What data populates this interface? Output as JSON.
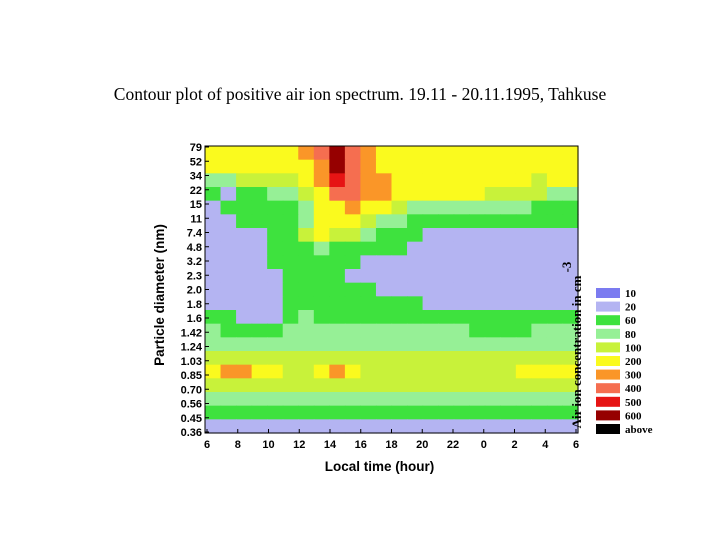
{
  "chart_data": {
    "type": "heatmap",
    "title": "Contour plot of positive air ion spectrum. 19.11 - 20.11.1995, Tahkuse",
    "xlabel": "Local time (hour)",
    "ylabel": "Particle diameter (nm)",
    "colorbar_label": "Air ion concentration in cm",
    "colorbar_exponent": "-3",
    "x_ticks": [
      "6",
      "8",
      "10",
      "12",
      "14",
      "16",
      "18",
      "20",
      "22",
      "0",
      "2",
      "4",
      "6"
    ],
    "y_ticks": [
      "79",
      "52",
      "34",
      "22",
      "15",
      "11",
      "7.4",
      "4.8",
      "3.2",
      "2.3",
      "2.0",
      "1.8",
      "1.6",
      "1.42",
      "1.24",
      "1.03",
      "0.85",
      "0.70",
      "0.56",
      "0.45",
      "0.36"
    ],
    "levels": [
      {
        "label": "10",
        "color": "#7b7bf0"
      },
      {
        "label": "20",
        "color": "#b4b4f2"
      },
      {
        "label": "60",
        "color": "#3ee23e"
      },
      {
        "label": "80",
        "color": "#96f096"
      },
      {
        "label": "100",
        "color": "#c8f23a"
      },
      {
        "label": "200",
        "color": "#fafa1e"
      },
      {
        "label": "300",
        "color": "#fa9628"
      },
      {
        "label": "400",
        "color": "#f56e50"
      },
      {
        "label": "500",
        "color": "#e61414"
      },
      {
        "label": "600",
        "color": "#960000"
      },
      {
        "label": "above",
        "color": "#000000"
      }
    ],
    "grid": [
      [
        5,
        5,
        5,
        5,
        5,
        5,
        6,
        7,
        9,
        7,
        6,
        5,
        5,
        5,
        5,
        5,
        5,
        5,
        5,
        5,
        5,
        5,
        5,
        5
      ],
      [
        5,
        5,
        5,
        5,
        5,
        5,
        5,
        6,
        9,
        7,
        6,
        5,
        5,
        5,
        5,
        5,
        5,
        5,
        5,
        5,
        5,
        5,
        5,
        5
      ],
      [
        3,
        3,
        4,
        4,
        4,
        4,
        5,
        6,
        8,
        7,
        6,
        6,
        5,
        5,
        5,
        5,
        5,
        5,
        5,
        5,
        5,
        4,
        5,
        5
      ],
      [
        2,
        1,
        2,
        2,
        3,
        3,
        4,
        5,
        7,
        7,
        6,
        6,
        5,
        5,
        5,
        5,
        5,
        5,
        4,
        4,
        4,
        4,
        3,
        3
      ],
      [
        1,
        2,
        2,
        2,
        2,
        2,
        3,
        5,
        5,
        6,
        5,
        5,
        4,
        3,
        3,
        3,
        3,
        3,
        3,
        3,
        3,
        2,
        2,
        2
      ],
      [
        1,
        1,
        2,
        2,
        2,
        2,
        3,
        5,
        5,
        5,
        4,
        3,
        3,
        2,
        2,
        2,
        2,
        2,
        2,
        2,
        2,
        2,
        2,
        2
      ],
      [
        1,
        1,
        1,
        1,
        2,
        2,
        4,
        5,
        4,
        4,
        3,
        2,
        2,
        2,
        1,
        1,
        1,
        1,
        1,
        1,
        1,
        1,
        1,
        1
      ],
      [
        1,
        1,
        1,
        1,
        2,
        2,
        2,
        3,
        2,
        2,
        2,
        2,
        2,
        1,
        1,
        1,
        1,
        1,
        1,
        1,
        1,
        1,
        1,
        1
      ],
      [
        1,
        1,
        1,
        1,
        2,
        2,
        2,
        2,
        2,
        2,
        1,
        1,
        1,
        1,
        1,
        1,
        1,
        1,
        1,
        1,
        1,
        1,
        1,
        1
      ],
      [
        1,
        1,
        1,
        1,
        1,
        2,
        2,
        2,
        2,
        1,
        1,
        1,
        1,
        1,
        1,
        1,
        1,
        1,
        1,
        1,
        1,
        1,
        1,
        1
      ],
      [
        1,
        1,
        1,
        1,
        1,
        2,
        2,
        2,
        2,
        2,
        2,
        1,
        1,
        1,
        1,
        1,
        1,
        1,
        1,
        1,
        1,
        1,
        1,
        1
      ],
      [
        1,
        1,
        1,
        1,
        1,
        2,
        2,
        2,
        2,
        2,
        2,
        2,
        2,
        2,
        1,
        1,
        1,
        1,
        1,
        1,
        1,
        1,
        1,
        1
      ],
      [
        2,
        2,
        1,
        1,
        1,
        2,
        3,
        2,
        2,
        2,
        2,
        2,
        2,
        2,
        2,
        2,
        2,
        2,
        2,
        2,
        2,
        2,
        2,
        2
      ],
      [
        3,
        2,
        2,
        2,
        2,
        3,
        3,
        3,
        3,
        3,
        3,
        3,
        3,
        3,
        3,
        3,
        3,
        2,
        2,
        2,
        2,
        3,
        3,
        3
      ],
      [
        3,
        3,
        3,
        3,
        3,
        3,
        3,
        3,
        3,
        3,
        3,
        3,
        3,
        3,
        3,
        3,
        3,
        3,
        3,
        3,
        3,
        3,
        3,
        3
      ],
      [
        4,
        4,
        4,
        4,
        4,
        4,
        4,
        4,
        4,
        4,
        4,
        4,
        4,
        4,
        4,
        4,
        4,
        4,
        4,
        4,
        4,
        4,
        4,
        4
      ],
      [
        5,
        6,
        6,
        5,
        5,
        4,
        4,
        5,
        6,
        5,
        4,
        4,
        4,
        4,
        4,
        4,
        4,
        4,
        4,
        4,
        5,
        5,
        5,
        5
      ],
      [
        4,
        4,
        4,
        4,
        4,
        4,
        4,
        4,
        4,
        4,
        4,
        4,
        4,
        4,
        4,
        4,
        4,
        4,
        4,
        4,
        4,
        4,
        4,
        4
      ],
      [
        3,
        3,
        3,
        3,
        3,
        3,
        3,
        3,
        3,
        3,
        3,
        3,
        3,
        3,
        3,
        3,
        3,
        3,
        3,
        3,
        3,
        3,
        3,
        3
      ],
      [
        2,
        2,
        2,
        2,
        2,
        2,
        2,
        2,
        2,
        2,
        2,
        2,
        2,
        2,
        2,
        2,
        2,
        2,
        2,
        2,
        2,
        2,
        2,
        2
      ],
      [
        1,
        1,
        1,
        1,
        1,
        1,
        1,
        1,
        1,
        1,
        1,
        1,
        1,
        1,
        1,
        1,
        1,
        1,
        1,
        1,
        1,
        1,
        1,
        1
      ]
    ]
  }
}
